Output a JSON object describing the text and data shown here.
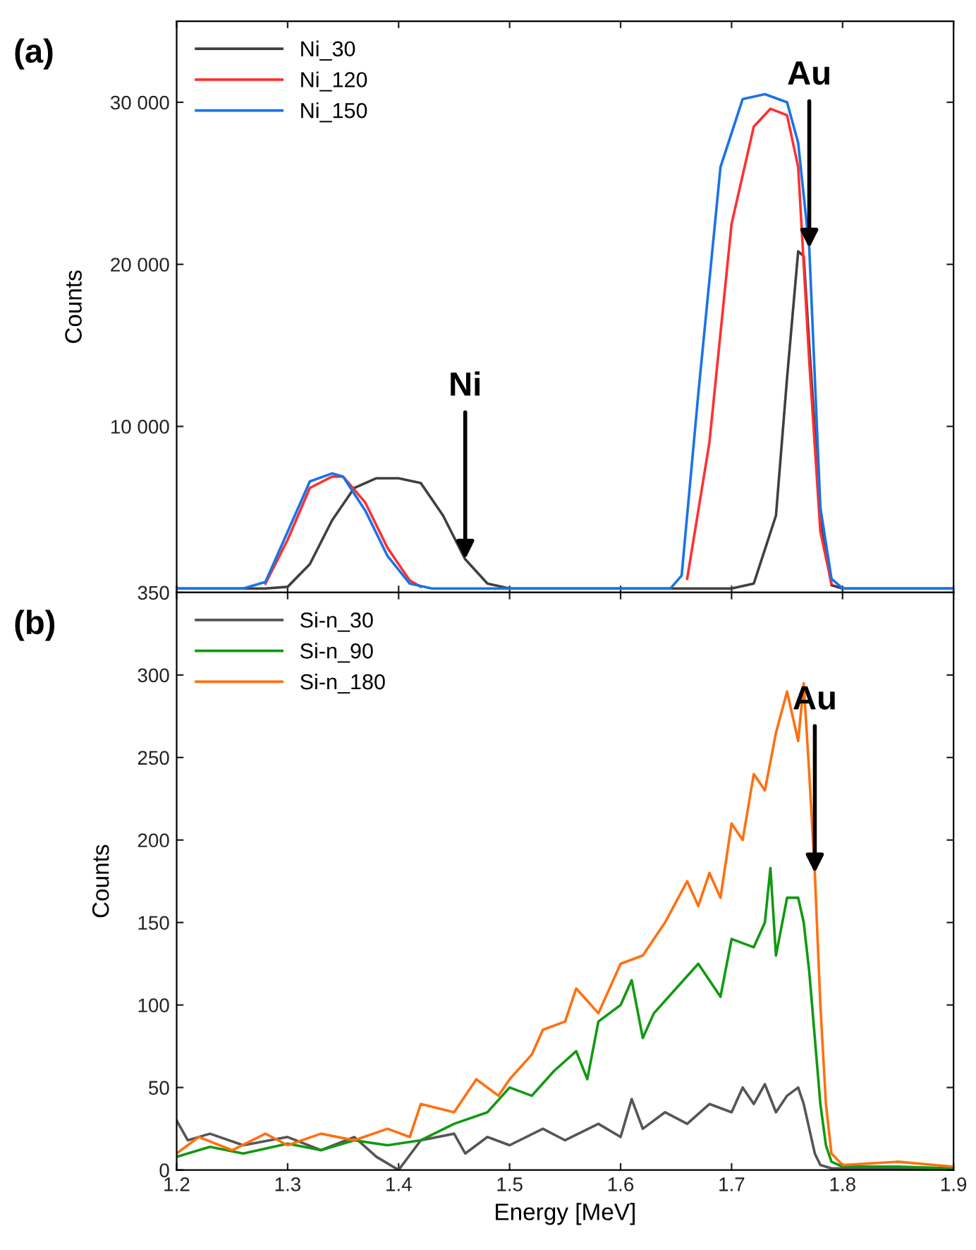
{
  "chart_data": [
    {
      "type": "line",
      "title": "(a)",
      "ylabel": "Counts",
      "xlim": [
        1.2,
        1.9
      ],
      "xticks": [
        1.2,
        1.3,
        1.4,
        1.5,
        1.6,
        1.7,
        1.8,
        1.9
      ],
      "ylim": [
        -250,
        35000
      ],
      "yticks": [
        {
          "value": 10000,
          "label": "10 000"
        },
        {
          "value": 20000,
          "label": "20 000"
        },
        {
          "value": 30000,
          "label": "30 000"
        }
      ],
      "tick_labels": "y",
      "legend": "top left",
      "grid": false,
      "annotations": [
        {
          "text": "Ni",
          "x": 1.46,
          "y": 1800
        },
        {
          "text": "Au",
          "x": 1.77,
          "y": 21000
        }
      ],
      "series": [
        {
          "name": "Ni_30",
          "color": "#404040",
          "x": [
            1.2,
            1.28,
            1.3,
            1.32,
            1.34,
            1.36,
            1.38,
            1.4,
            1.42,
            1.44,
            1.46,
            1.48,
            1.5,
            1.6,
            1.7,
            1.72,
            1.74,
            1.75,
            1.76,
            1.765,
            1.77,
            1.78,
            1.79,
            1.8,
            1.9
          ],
          "values": [
            0,
            0,
            100,
            1500,
            4200,
            6200,
            6800,
            6800,
            6500,
            4500,
            1800,
            300,
            0,
            0,
            0,
            300,
            4500,
            13000,
            20800,
            20500,
            15000,
            4500,
            200,
            0,
            0
          ]
        },
        {
          "name": "Ni_120",
          "color": "#ff3030",
          "x": [
            1.28,
            1.3,
            1.32,
            1.34,
            1.35,
            1.37,
            1.39,
            1.41,
            1.42,
            1.5,
            1.66,
            1.68,
            1.7,
            1.72,
            1.735,
            1.75,
            1.76,
            1.77,
            1.78,
            1.79
          ],
          "values": [
            300,
            3000,
            6200,
            6900,
            6900,
            5300,
            2500,
            500,
            100,
            null,
            600,
            9000,
            22500,
            28500,
            29600,
            29200,
            26000,
            14000,
            3500,
            300
          ]
        },
        {
          "name": "Ni_150",
          "color": "#1a73e8",
          "x": [
            1.2,
            1.26,
            1.28,
            1.3,
            1.32,
            1.34,
            1.35,
            1.37,
            1.39,
            1.41,
            1.43,
            1.6,
            1.645,
            1.655,
            1.67,
            1.69,
            1.71,
            1.73,
            1.75,
            1.76,
            1.77,
            1.78,
            1.79,
            1.8,
            1.9
          ],
          "values": [
            0,
            0,
            400,
            3500,
            6600,
            7100,
            6900,
            4800,
            2000,
            300,
            0,
            0,
            0,
            800,
            12000,
            26000,
            30200,
            30500,
            30000,
            27500,
            21000,
            5000,
            600,
            0,
            0
          ]
        }
      ]
    },
    {
      "type": "line",
      "title": "(b)",
      "xlabel": "Energy [MeV]",
      "ylabel": "Counts",
      "xlim": [
        1.2,
        1.9
      ],
      "xticks": [
        1.2,
        1.3,
        1.4,
        1.5,
        1.6,
        1.7,
        1.8,
        1.9
      ],
      "ylim": [
        0,
        350
      ],
      "yticks": [
        0,
        50,
        100,
        150,
        200,
        250,
        300,
        350
      ],
      "legend": "top left",
      "grid": false,
      "annotations": [
        {
          "text": "Au",
          "x": 1.775,
          "y": 180
        }
      ],
      "series": [
        {
          "name": "Si-n_30",
          "color": "#555555",
          "x": [
            1.2,
            1.21,
            1.23,
            1.26,
            1.3,
            1.33,
            1.36,
            1.38,
            1.4,
            1.42,
            1.45,
            1.46,
            1.48,
            1.5,
            1.53,
            1.55,
            1.58,
            1.6,
            1.61,
            1.62,
            1.64,
            1.66,
            1.68,
            1.7,
            1.71,
            1.72,
            1.73,
            1.74,
            1.75,
            1.76,
            1.765,
            1.77,
            1.775,
            1.78,
            1.79,
            1.8,
            1.85,
            1.9
          ],
          "values": [
            30,
            18,
            22,
            15,
            20,
            12,
            20,
            8,
            0,
            18,
            22,
            10,
            20,
            15,
            25,
            18,
            28,
            20,
            43,
            25,
            35,
            28,
            40,
            35,
            50,
            40,
            52,
            35,
            45,
            50,
            40,
            25,
            10,
            3,
            1,
            1,
            1,
            0
          ]
        },
        {
          "name": "Si-n_90",
          "color": "#119911",
          "x": [
            1.2,
            1.23,
            1.26,
            1.3,
            1.33,
            1.36,
            1.39,
            1.42,
            1.45,
            1.48,
            1.5,
            1.52,
            1.54,
            1.56,
            1.57,
            1.58,
            1.6,
            1.61,
            1.62,
            1.63,
            1.65,
            1.67,
            1.69,
            1.7,
            1.72,
            1.73,
            1.735,
            1.74,
            1.75,
            1.76,
            1.765,
            1.77,
            1.775,
            1.78,
            1.785,
            1.79,
            1.8,
            1.85,
            1.9
          ],
          "values": [
            8,
            14,
            10,
            16,
            12,
            18,
            15,
            18,
            28,
            35,
            50,
            45,
            60,
            72,
            55,
            90,
            100,
            115,
            80,
            95,
            110,
            125,
            105,
            140,
            135,
            150,
            183,
            130,
            165,
            165,
            150,
            120,
            80,
            40,
            15,
            5,
            2,
            2,
            1
          ]
        },
        {
          "name": "Si-n_180",
          "color": "#ff7010",
          "x": [
            1.2,
            1.22,
            1.25,
            1.28,
            1.3,
            1.33,
            1.36,
            1.39,
            1.41,
            1.42,
            1.45,
            1.47,
            1.49,
            1.5,
            1.52,
            1.53,
            1.55,
            1.56,
            1.58,
            1.6,
            1.62,
            1.64,
            1.66,
            1.67,
            1.68,
            1.69,
            1.7,
            1.71,
            1.72,
            1.73,
            1.74,
            1.75,
            1.76,
            1.765,
            1.77,
            1.775,
            1.78,
            1.785,
            1.79,
            1.8,
            1.85,
            1.9
          ],
          "values": [
            10,
            20,
            12,
            22,
            15,
            22,
            18,
            25,
            20,
            40,
            35,
            55,
            45,
            55,
            70,
            85,
            90,
            110,
            95,
            125,
            130,
            150,
            175,
            160,
            180,
            165,
            210,
            200,
            240,
            230,
            265,
            290,
            260,
            295,
            240,
            180,
            100,
            40,
            10,
            3,
            5,
            2
          ]
        }
      ]
    }
  ]
}
